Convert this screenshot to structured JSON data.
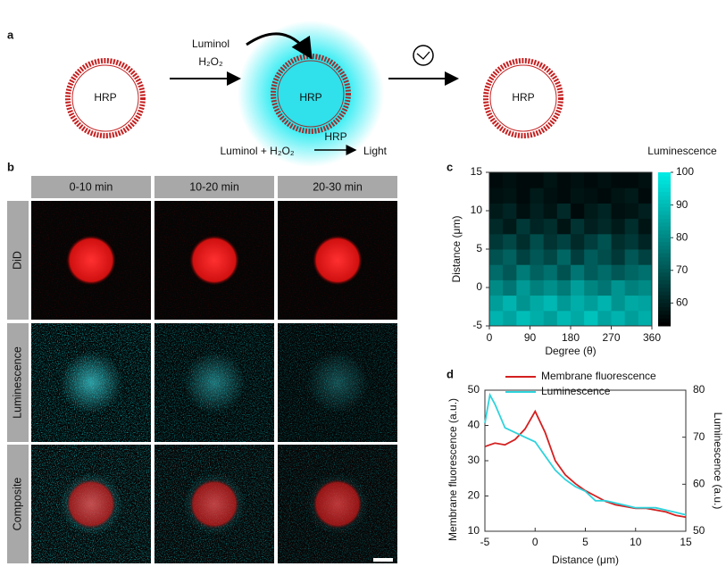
{
  "panel_a": {
    "label": "a",
    "vesicle_labels": [
      "HRP",
      "HRP",
      "HRP"
    ],
    "reagent_1": "Luminol",
    "reagent_2": "H₂O₂",
    "equation_left": "Luminol + H₂O₂",
    "equation_catalyst": "HRP",
    "equation_right": "Light"
  },
  "panel_b": {
    "label": "b",
    "columns": [
      "0-10 min",
      "10-20 min",
      "20-30 min"
    ],
    "rows": [
      "DiD",
      "Luminescence",
      "Composite"
    ]
  },
  "panel_c": {
    "label": "c"
  },
  "panel_d": {
    "label": "d"
  },
  "chart_data": [
    {
      "type": "heatmap",
      "colorbar_title": "Luminescence",
      "x_label": "Degree (θ)",
      "y_label": "Distance (μm)",
      "x": [
        15,
        45,
        75,
        105,
        135,
        165,
        195,
        225,
        255,
        285,
        315,
        345
      ],
      "y": [
        -4,
        -2,
        0,
        2,
        4,
        6,
        8,
        10,
        12,
        14
      ],
      "z": [
        [
          88,
          85,
          90,
          87,
          84,
          89,
          86,
          91,
          85,
          88,
          84,
          87
        ],
        [
          84,
          88,
          82,
          86,
          89,
          83,
          87,
          84,
          88,
          82,
          86,
          85
        ],
        [
          80,
          76,
          83,
          78,
          81,
          77,
          84,
          79,
          76,
          82,
          78,
          80
        ],
        [
          74,
          70,
          77,
          72,
          75,
          69,
          76,
          71,
          74,
          70,
          73,
          75
        ],
        [
          69,
          72,
          66,
          70,
          67,
          73,
          65,
          71,
          68,
          64,
          70,
          66
        ],
        [
          64,
          67,
          62,
          68,
          63,
          66,
          61,
          65,
          69,
          62,
          64,
          60
        ],
        [
          61,
          58,
          64,
          60,
          62,
          57,
          63,
          59,
          61,
          58,
          62,
          57
        ],
        [
          58,
          60,
          56,
          59,
          57,
          61,
          55,
          58,
          60,
          56,
          57,
          59
        ],
        [
          56,
          57,
          55,
          58,
          56,
          55,
          57,
          56,
          55,
          57,
          58,
          55
        ],
        [
          55,
          56,
          55,
          55,
          57,
          55,
          56,
          55,
          56,
          55,
          55,
          56
        ]
      ],
      "xlim": [
        0,
        360
      ],
      "xticks": [
        0,
        90,
        180,
        270,
        360
      ],
      "ylim": [
        -5,
        15
      ],
      "yticks": [
        -5,
        0,
        5,
        10,
        15
      ],
      "clim": [
        53,
        100
      ],
      "cticks": [
        60,
        70,
        80,
        90,
        100
      ],
      "colormap": [
        "#000000",
        "#00f0ea"
      ]
    },
    {
      "type": "line",
      "x_label": "Distance (μm)",
      "y_label": "Membrane fluorescence (a.u.)",
      "y2_label": "Luminescence (a.u.)",
      "x": [
        -5,
        -4.5,
        -4,
        -3,
        -2,
        -1,
        0,
        1,
        2,
        3,
        4,
        5,
        6,
        7,
        8,
        9,
        10,
        11,
        12,
        13,
        14,
        15
      ],
      "series": [
        {
          "name": "Membrane fluorescence",
          "color": "#d42020",
          "values": [
            34,
            34.5,
            35,
            34.5,
            36,
            39,
            44,
            38,
            30,
            26,
            23.5,
            21.5,
            20,
            18.5,
            17.5,
            17,
            16.5,
            16.5,
            16,
            15.5,
            14.5,
            14
          ]
        },
        {
          "name": "Luminescence",
          "color": "#2fd3dc",
          "axis": "y2",
          "values": [
            73,
            79,
            77,
            72,
            71,
            70,
            69,
            66,
            63,
            61,
            59.5,
            58.5,
            56.5,
            56.5,
            56,
            55.5,
            55,
            55,
            55,
            54.5,
            54,
            53.5
          ]
        }
      ],
      "xlim": [
        -5,
        15
      ],
      "xticks": [
        -5,
        0,
        5,
        10,
        15
      ],
      "ylim": [
        10,
        50
      ],
      "yticks": [
        10,
        20,
        30,
        40,
        50
      ],
      "y2lim": [
        50,
        80
      ],
      "y2ticks": [
        50,
        60,
        70,
        80
      ],
      "legend": "upper center"
    }
  ]
}
